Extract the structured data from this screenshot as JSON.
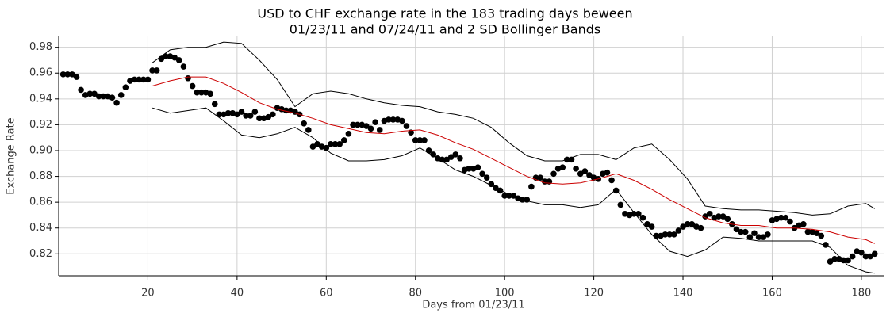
{
  "chart_data": {
    "type": "scatter",
    "title": [
      "USD to CHF exchange rate in the 183 trading days beween",
      "01/23/11 and 07/24/11 and 2 SD Bollinger Bands"
    ],
    "x_label": "Days from 01/23/11",
    "y_label": "Exchange Rate",
    "xlim": [
      0,
      185
    ],
    "ylim": [
      0.803,
      0.989
    ],
    "xticks": [
      20,
      40,
      60,
      80,
      100,
      120,
      140,
      160,
      180
    ],
    "yticks": [
      0.82,
      0.84,
      0.86,
      0.88,
      {
        "value": 0.9,
        "label": "0.90"
      },
      0.92,
      0.94,
      0.96,
      0.98
    ],
    "grid": true,
    "series": [
      {
        "type": "scatter",
        "color": "#000000",
        "x": [
          1,
          2,
          3,
          4,
          5,
          6,
          7,
          8,
          9,
          10,
          11,
          12,
          13,
          14,
          15,
          16,
          17,
          18,
          19,
          20,
          21,
          22,
          23,
          24,
          25,
          26,
          27,
          28,
          29,
          30,
          31,
          32,
          33,
          34,
          35,
          36,
          37,
          38,
          39,
          40,
          41,
          42,
          43,
          44,
          45,
          46,
          47,
          48,
          49,
          50,
          51,
          52,
          53,
          54,
          55,
          56,
          57,
          58,
          59,
          60,
          61,
          62,
          63,
          64,
          65,
          66,
          67,
          68,
          69,
          70,
          71,
          72,
          73,
          74,
          75,
          76,
          77,
          78,
          79,
          80,
          81,
          82,
          83,
          84,
          85,
          86,
          87,
          88,
          89,
          90,
          91,
          92,
          93,
          94,
          95,
          96,
          97,
          98,
          99,
          100,
          101,
          102,
          103,
          104,
          105,
          106,
          107,
          108,
          109,
          110,
          111,
          112,
          113,
          114,
          115,
          116,
          117,
          118,
          119,
          120,
          121,
          122,
          123,
          124,
          125,
          126,
          127,
          128,
          129,
          130,
          131,
          132,
          133,
          134,
          135,
          136,
          137,
          138,
          139,
          140,
          141,
          142,
          143,
          144,
          145,
          146,
          147,
          148,
          149,
          150,
          151,
          152,
          153,
          154,
          155,
          156,
          157,
          158,
          159,
          160,
          161,
          162,
          163,
          164,
          165,
          166,
          167,
          168,
          169,
          170,
          171,
          172,
          173,
          174,
          175,
          176,
          177,
          178,
          179,
          180,
          181,
          182,
          183
        ],
        "values": [
          0.959,
          0.959,
          0.959,
          0.957,
          0.947,
          0.943,
          0.944,
          0.944,
          0.942,
          0.942,
          0.942,
          0.941,
          0.937,
          0.943,
          0.949,
          0.954,
          0.955,
          0.955,
          0.955,
          0.955,
          0.962,
          0.962,
          0.971,
          0.973,
          0.973,
          0.972,
          0.97,
          0.965,
          0.956,
          0.95,
          0.945,
          0.945,
          0.945,
          0.944,
          0.936,
          0.928,
          0.928,
          0.929,
          0.929,
          0.928,
          0.93,
          0.927,
          0.927,
          0.93,
          0.925,
          0.925,
          0.926,
          0.928,
          0.933,
          0.932,
          0.931,
          0.931,
          0.93,
          0.928,
          0.921,
          0.916,
          0.903,
          0.905,
          0.903,
          0.902,
          0.905,
          0.905,
          0.905,
          0.908,
          0.913,
          0.92,
          0.92,
          0.92,
          0.919,
          0.917,
          0.922,
          0.916,
          0.923,
          0.924,
          0.924,
          0.924,
          0.923,
          0.919,
          0.914,
          0.908,
          0.908,
          0.908,
          0.9,
          0.897,
          0.894,
          0.893,
          0.893,
          0.895,
          0.897,
          0.894,
          0.885,
          0.886,
          0.886,
          0.887,
          0.882,
          0.879,
          0.874,
          0.871,
          0.869,
          0.865,
          0.865,
          0.865,
          0.863,
          0.862,
          0.862,
          0.872,
          0.879,
          0.879,
          0.876,
          0.876,
          0.882,
          0.886,
          0.887,
          0.893,
          0.893,
          0.886,
          0.882,
          0.884,
          0.881,
          0.879,
          0.878,
          0.882,
          0.883,
          0.877,
          0.869,
          0.858,
          0.851,
          0.85,
          0.851,
          0.851,
          0.848,
          0.843,
          0.841,
          0.834,
          0.834,
          0.835,
          0.835,
          0.835,
          0.838,
          0.841,
          0.843,
          0.843,
          0.841,
          0.84,
          0.849,
          0.851,
          0.848,
          0.849,
          0.849,
          0.847,
          0.843,
          0.839,
          0.837,
          0.837,
          0.833,
          0.836,
          0.833,
          0.833,
          0.835,
          0.846,
          0.847,
          0.848,
          0.848,
          0.845,
          0.84,
          0.842,
          0.843,
          0.837,
          0.837,
          0.836,
          0.834,
          0.827,
          0.814,
          0.816,
          0.816,
          0.815,
          0.815,
          0.818,
          0.822,
          0.821,
          0.818,
          0.818,
          0.82
        ]
      },
      {
        "type": "line",
        "color": "#000000",
        "x": [
          21,
          25,
          29,
          33,
          37,
          41,
          45,
          49,
          53,
          57,
          61,
          65,
          69,
          73,
          77,
          81,
          85,
          89,
          93,
          97,
          101,
          105,
          109,
          113,
          117,
          121,
          125,
          129,
          133,
          137,
          141,
          145,
          149,
          153,
          157,
          161,
          165,
          169,
          173,
          177,
          181,
          183
        ],
        "values": [
          0.968,
          0.978,
          0.98,
          0.98,
          0.984,
          0.983,
          0.97,
          0.955,
          0.934,
          0.944,
          0.946,
          0.944,
          0.94,
          0.937,
          0.935,
          0.934,
          0.93,
          0.928,
          0.925,
          0.918,
          0.906,
          0.896,
          0.892,
          0.892,
          0.897,
          0.897,
          0.893,
          0.902,
          0.905,
          0.893,
          0.878,
          0.857,
          0.855,
          0.854,
          0.854,
          0.853,
          0.852,
          0.85,
          0.851,
          0.857,
          0.859,
          0.855
        ]
      },
      {
        "type": "line",
        "color": "#cc0000",
        "x": [
          21,
          25,
          29,
          33,
          37,
          41,
          45,
          49,
          53,
          57,
          61,
          65,
          69,
          73,
          77,
          81,
          85,
          89,
          93,
          97,
          101,
          105,
          109,
          113,
          117,
          121,
          125,
          129,
          133,
          137,
          141,
          145,
          149,
          153,
          157,
          161,
          165,
          169,
          173,
          177,
          181,
          183
        ],
        "values": [
          0.95,
          0.954,
          0.957,
          0.957,
          0.952,
          0.945,
          0.937,
          0.932,
          0.929,
          0.925,
          0.92,
          0.917,
          0.914,
          0.913,
          0.915,
          0.916,
          0.912,
          0.906,
          0.901,
          0.894,
          0.887,
          0.88,
          0.875,
          0.874,
          0.875,
          0.878,
          0.882,
          0.877,
          0.87,
          0.862,
          0.855,
          0.848,
          0.844,
          0.842,
          0.842,
          0.84,
          0.84,
          0.839,
          0.837,
          0.833,
          0.831,
          0.828
        ]
      },
      {
        "type": "line",
        "color": "#000000",
        "x": [
          21,
          25,
          29,
          33,
          37,
          41,
          45,
          49,
          53,
          57,
          61,
          65,
          69,
          73,
          77,
          81,
          85,
          89,
          93,
          97,
          101,
          105,
          109,
          113,
          117,
          121,
          125,
          129,
          133,
          137,
          141,
          145,
          149,
          153,
          157,
          161,
          165,
          169,
          173,
          177,
          181,
          183
        ],
        "values": [
          0.933,
          0.929,
          0.931,
          0.933,
          0.923,
          0.912,
          0.91,
          0.913,
          0.918,
          0.91,
          0.898,
          0.892,
          0.892,
          0.893,
          0.896,
          0.902,
          0.894,
          0.885,
          0.88,
          0.873,
          0.866,
          0.861,
          0.858,
          0.858,
          0.856,
          0.858,
          0.87,
          0.852,
          0.835,
          0.822,
          0.818,
          0.823,
          0.833,
          0.832,
          0.83,
          0.83,
          0.83,
          0.83,
          0.825,
          0.811,
          0.806,
          0.805
        ]
      }
    ]
  }
}
